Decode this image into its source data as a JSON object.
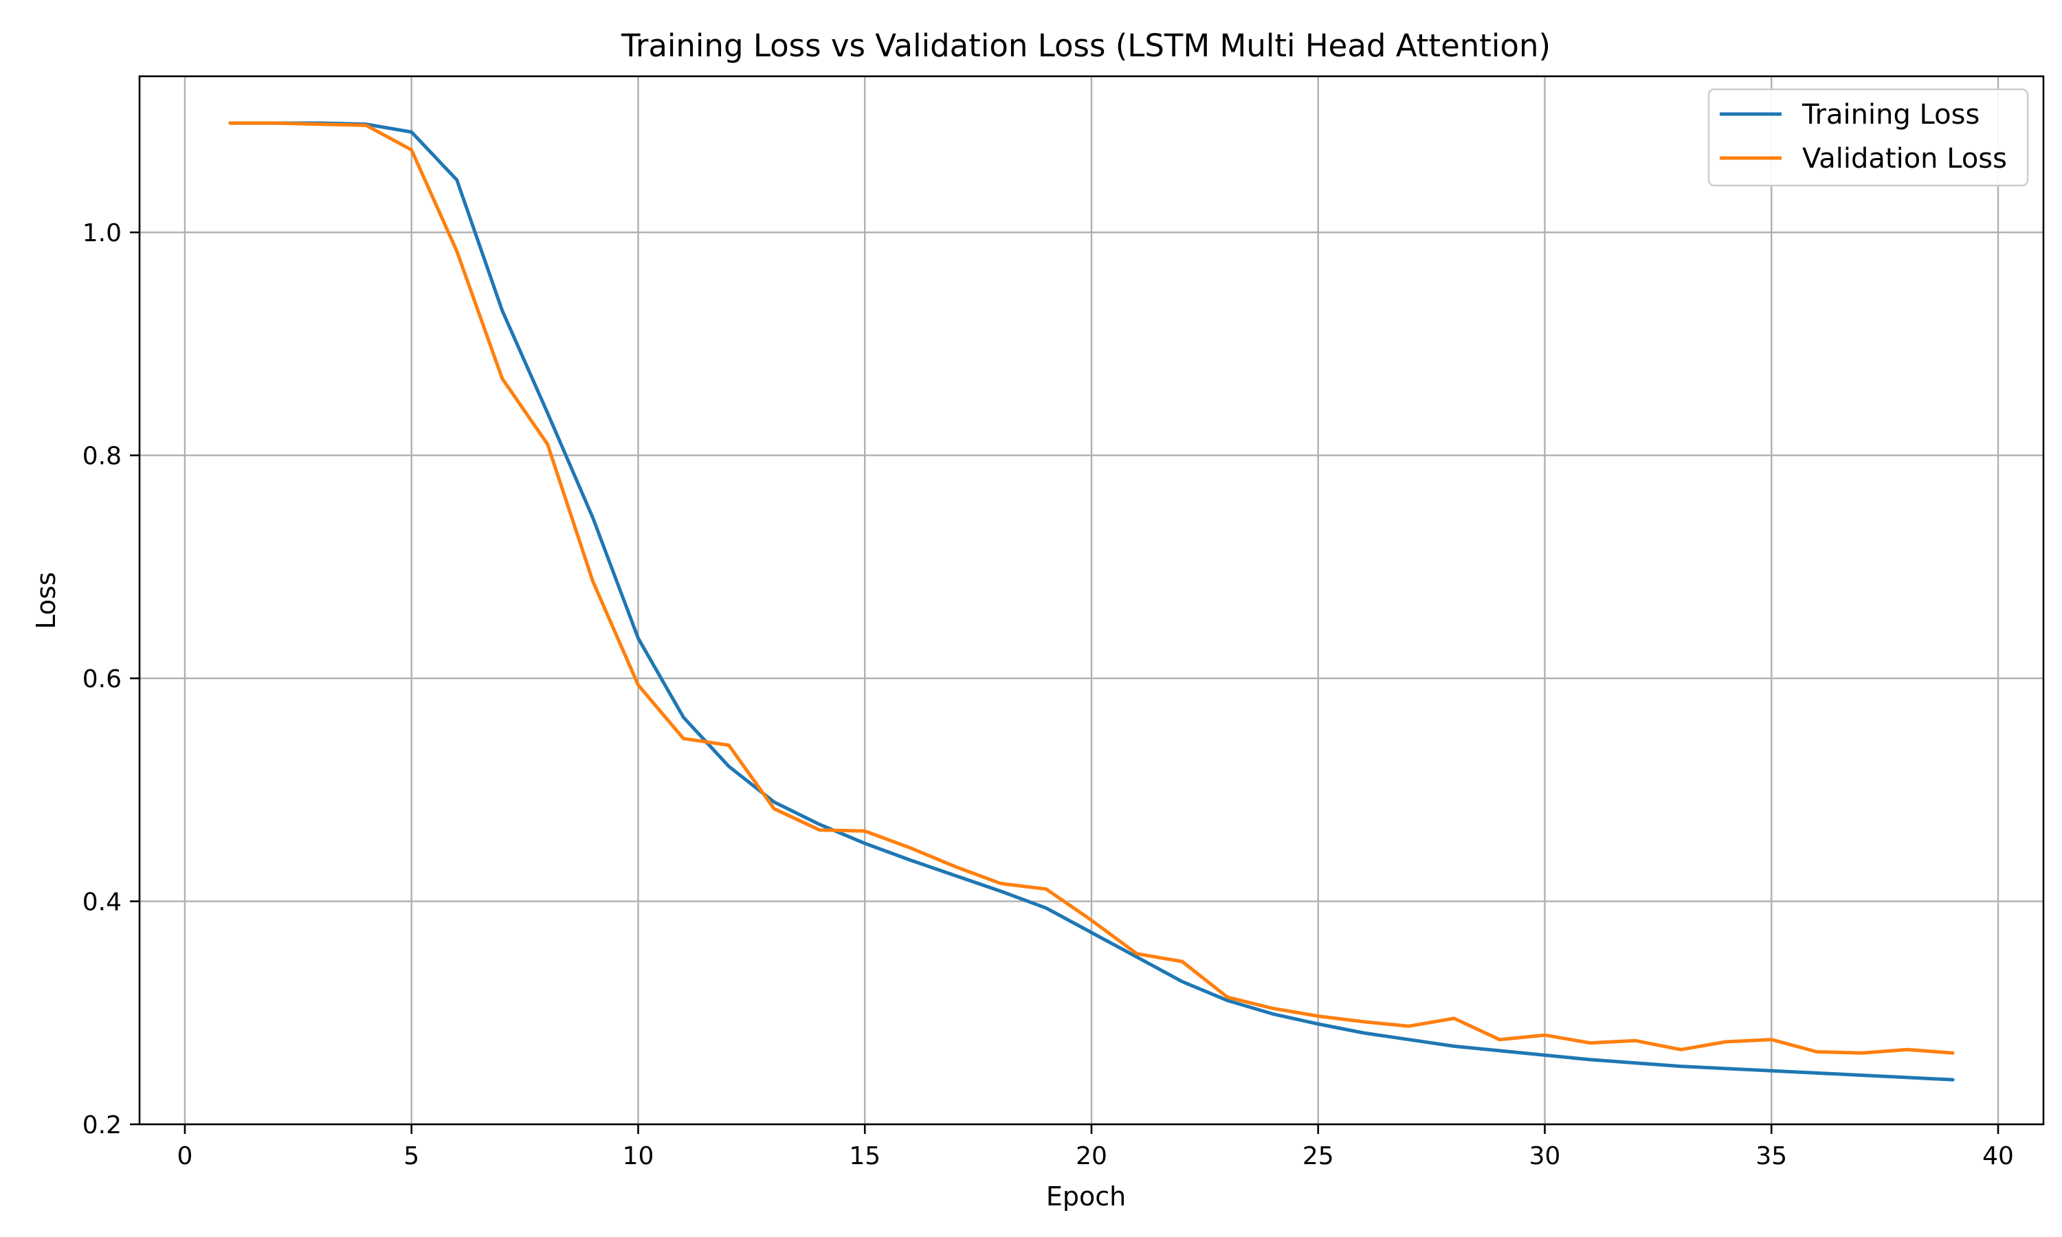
{
  "chart_data": {
    "type": "line",
    "title": "Training Loss vs Validation Loss (LSTM Multi Head Attention)",
    "xlabel": "Epoch",
    "ylabel": "Loss",
    "xlim": [
      -1,
      41
    ],
    "ylim": [
      0.2,
      1.14
    ],
    "xticks": [
      0,
      5,
      10,
      15,
      20,
      25,
      30,
      35,
      40
    ],
    "yticks": [
      0.2,
      0.4,
      0.6,
      0.8,
      1.0
    ],
    "xtick_labels": [
      "0",
      "5",
      "10",
      "15",
      "20",
      "25",
      "30",
      "35",
      "40"
    ],
    "ytick_labels": [
      "0.2",
      "0.4",
      "0.6",
      "0.8",
      "1.0"
    ],
    "grid": true,
    "legend_position": "top-right",
    "x": [
      1,
      2,
      3,
      4,
      5,
      6,
      7,
      8,
      9,
      10,
      11,
      12,
      13,
      14,
      15,
      16,
      17,
      18,
      19,
      20,
      21,
      22,
      23,
      24,
      25,
      26,
      27,
      28,
      29,
      30,
      31,
      32,
      33,
      34,
      35,
      36,
      37,
      38,
      39
    ],
    "series": [
      {
        "name": "Training Loss",
        "color": "#1f77b4",
        "values": [
          1.098,
          1.098,
          1.098,
          1.097,
          1.09,
          1.047,
          0.93,
          0.838,
          0.744,
          0.636,
          0.565,
          0.521,
          0.489,
          0.469,
          0.452,
          0.437,
          0.423,
          0.409,
          0.394,
          0.372,
          0.35,
          0.328,
          0.311,
          0.299,
          0.29,
          0.282,
          0.276,
          0.27,
          0.266,
          0.262,
          0.258,
          0.255,
          0.252,
          0.25,
          0.248,
          0.246,
          0.244,
          0.242,
          0.24
        ]
      },
      {
        "name": "Validation Loss",
        "color": "#ff7f0e",
        "values": [
          1.098,
          1.098,
          1.097,
          1.096,
          1.074,
          0.983,
          0.869,
          0.81,
          0.687,
          0.594,
          0.546,
          0.54,
          0.483,
          0.464,
          0.463,
          0.448,
          0.431,
          0.416,
          0.411,
          0.383,
          0.353,
          0.346,
          0.314,
          0.304,
          0.297,
          0.292,
          0.288,
          0.295,
          0.276,
          0.28,
          0.273,
          0.275,
          0.267,
          0.274,
          0.276,
          0.265,
          0.264,
          0.267,
          0.264
        ]
      }
    ]
  }
}
